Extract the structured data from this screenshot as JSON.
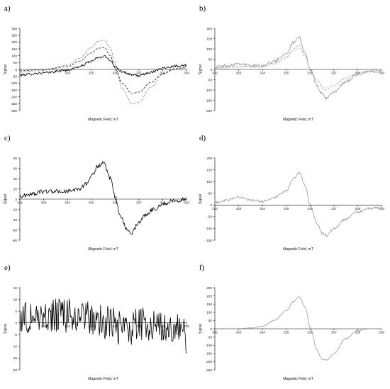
{
  "chart_data": [
    {
      "panel_label": "a)",
      "type": "line",
      "xlabel": "Magnetic Field, mT",
      "ylabel": "Signal",
      "xlim": [
        332,
        339
      ],
      "ylim": [
        -300,
        300
      ],
      "xticks": [
        332,
        333,
        334,
        335,
        336,
        337,
        338,
        339
      ],
      "xtick_labels": [
        "",
        "",
        "334",
        "335",
        "336",
        "337",
        "338",
        "339"
      ],
      "yticks": [
        300,
        250,
        200,
        150,
        100,
        50,
        0,
        -50,
        -100,
        -150,
        -200,
        -250,
        -300
      ],
      "ytick_labels": [
        "300",
        "250",
        "200",
        "150",
        "100",
        "50",
        "0",
        "-50",
        "-100",
        "-150",
        "-200",
        "-250",
        "-300"
      ],
      "series": [
        {
          "style": "solid",
          "color": "#000000",
          "noise": 0.03,
          "x": [
            332,
            333,
            334,
            334.5,
            335,
            335.3,
            335.55,
            335.8,
            336,
            336.3,
            336.7,
            337,
            337.5,
            338,
            338.5,
            339
          ],
          "y": [
            -40,
            -25,
            -5,
            20,
            60,
            85,
            95,
            70,
            20,
            -15,
            -40,
            -45,
            -20,
            10,
            25,
            30
          ]
        },
        {
          "style": "dashed",
          "color": "#333333",
          "noise": 0.0,
          "x": [
            332,
            333,
            334,
            334.5,
            335,
            335.3,
            335.55,
            335.8,
            336,
            336.3,
            336.7,
            337,
            337.5,
            338,
            338.5,
            339
          ],
          "y": [
            -10,
            0,
            20,
            60,
            120,
            155,
            160,
            100,
            10,
            -100,
            -175,
            -165,
            -95,
            -30,
            5,
            15
          ]
        },
        {
          "style": "dotted",
          "color": "#555555",
          "noise": 0.0,
          "x": [
            332,
            333,
            334,
            334.5,
            335,
            335.3,
            335.55,
            335.8,
            336,
            336.3,
            336.7,
            337,
            337.5,
            338,
            338.5,
            339
          ],
          "y": [
            -20,
            -5,
            30,
            80,
            160,
            205,
            215,
            160,
            40,
            -140,
            -250,
            -240,
            -130,
            -35,
            0,
            10
          ]
        }
      ]
    },
    {
      "panel_label": "b)",
      "type": "line",
      "xlabel": "Magnetic Field, mT",
      "ylabel": "Signal",
      "xlim": [
        332,
        339
      ],
      "ylim": [
        -200,
        200
      ],
      "xticks": [
        332,
        333,
        334,
        335,
        336,
        337,
        338,
        339
      ],
      "xtick_labels": [
        "332",
        "333",
        "334",
        "335",
        "336",
        "337",
        "338",
        "339"
      ],
      "yticks": [
        200,
        150,
        100,
        50,
        0,
        -50,
        -100,
        -150,
        -200
      ],
      "ytick_labels": [
        "200",
        "150",
        "100",
        "50",
        "0",
        "-50",
        "-100",
        "-150",
        "-200"
      ],
      "series": [
        {
          "style": "solid",
          "color": "#9a9a9a",
          "noise": 0.04,
          "x": [
            332,
            332.5,
            333,
            333.5,
            334,
            334.5,
            335,
            335.3,
            335.55,
            335.8,
            336,
            336.3,
            336.5,
            336.7,
            337,
            337.5,
            338,
            338.5,
            339
          ],
          "y": [
            10,
            18,
            30,
            18,
            20,
            40,
            80,
            130,
            155,
            80,
            0,
            -80,
            -120,
            -140,
            -110,
            -60,
            -25,
            -10,
            -5
          ]
        },
        {
          "style": "dashed",
          "color": "#aaaaaa",
          "noise": 0.0,
          "x": [
            332,
            333,
            334,
            334.5,
            335,
            335.3,
            335.55,
            335.8,
            336,
            336.3,
            336.6,
            337,
            337.5,
            338,
            338.5,
            339
          ],
          "y": [
            5,
            15,
            15,
            30,
            60,
            100,
            120,
            70,
            0,
            -60,
            -100,
            -80,
            -45,
            -20,
            -8,
            -5
          ]
        },
        {
          "style": "dotted",
          "color": "#b5b5b5",
          "noise": 0.0,
          "x": [
            332,
            333,
            334,
            334.5,
            335,
            335.3,
            335.55,
            335.8,
            336,
            336.3,
            336.6,
            337,
            337.5,
            338,
            338.5,
            339
          ],
          "y": [
            0,
            10,
            10,
            25,
            55,
            90,
            105,
            60,
            0,
            -50,
            -90,
            -70,
            -40,
            -15,
            -5,
            0
          ]
        }
      ]
    },
    {
      "panel_label": "c)",
      "type": "line",
      "xlabel": "Magnetic Field, mT",
      "ylabel": "Signal",
      "xlim": [
        332,
        339
      ],
      "ylim": [
        -80,
        80
      ],
      "xticks": [
        332,
        333,
        334,
        335,
        336,
        337,
        338,
        339
      ],
      "xtick_labels": [
        "332",
        "333",
        "334",
        "335",
        "336",
        "337",
        "338",
        "339"
      ],
      "yticks": [
        80,
        60,
        40,
        20,
        0,
        -20,
        -40,
        -60,
        -80
      ],
      "ytick_labels": [
        "80",
        "60",
        "40",
        "20",
        "0",
        "-20",
        "-40",
        "-60",
        "-80"
      ],
      "series": [
        {
          "style": "solid",
          "color": "#000000",
          "noise": 0.05,
          "x": [
            332,
            332.5,
            333,
            333.5,
            334,
            334.5,
            334.8,
            335,
            335.3,
            335.5,
            335.8,
            336,
            336.2,
            336.5,
            336.7,
            337,
            337.3,
            337.6,
            338,
            338.5,
            339
          ],
          "y": [
            5,
            10,
            15,
            15,
            15,
            20,
            30,
            45,
            65,
            70,
            40,
            5,
            -30,
            -60,
            -65,
            -45,
            -30,
            -20,
            -10,
            -3,
            0
          ]
        }
      ]
    },
    {
      "panel_label": "d)",
      "type": "line",
      "xlabel": "Magnetic Field, mT",
      "ylabel": "Signal",
      "xlim": [
        332,
        339
      ],
      "ylim": [
        -150,
        200
      ],
      "xticks": [
        332,
        333,
        334,
        335,
        336,
        337,
        338,
        339
      ],
      "xtick_labels": [
        "332",
        "333",
        "334",
        "335",
        "336",
        "337",
        "338",
        "339"
      ],
      "yticks": [
        200,
        150,
        100,
        50,
        0,
        -50,
        -100,
        -150
      ],
      "ytick_labels": [
        "200",
        "150",
        "100",
        "50",
        "0",
        "-50",
        "-100",
        "-150"
      ],
      "series": [
        {
          "style": "solid",
          "color": "#9a9a9a",
          "noise": 0.03,
          "x": [
            332,
            332.5,
            333,
            333.5,
            334,
            334.5,
            335,
            335.3,
            335.55,
            335.8,
            336,
            336.3,
            336.5,
            336.7,
            337,
            337.5,
            338,
            338.5,
            339
          ],
          "y": [
            10,
            20,
            35,
            20,
            15,
            30,
            60,
            110,
            140,
            80,
            0,
            -80,
            -120,
            -130,
            -100,
            -60,
            -30,
            -15,
            -10
          ]
        }
      ]
    },
    {
      "panel_label": "e)",
      "type": "line",
      "xlabel": "Magnetic Field, mT",
      "ylabel": "Signal",
      "xlim": [
        332,
        339
      ],
      "ylim": [
        -20,
        15
      ],
      "xticks": [
        332,
        333,
        334,
        335,
        336,
        337,
        338,
        339
      ],
      "xtick_labels": [
        "",
        "333",
        "334",
        "335",
        "336",
        "337",
        "338",
        "339"
      ],
      "yticks": [
        15,
        10,
        5,
        0,
        -5,
        -10,
        -15,
        -20
      ],
      "ytick_labels": [
        "15",
        "10",
        "5",
        "0",
        "-5",
        "-10",
        "-15",
        "-20"
      ],
      "series": [
        {
          "style": "solid",
          "color": "#000000",
          "noise": 0.42,
          "x": [
            332,
            333,
            334,
            335,
            335.8,
            336.2,
            336.6,
            337,
            337.5,
            338,
            338.5,
            339
          ],
          "y": [
            2,
            3,
            3,
            2,
            0,
            -2,
            -3,
            -1,
            0,
            -1,
            -3,
            -6
          ]
        }
      ]
    },
    {
      "panel_label": "f)",
      "type": "line",
      "xlabel": "Magnetic Field, mT",
      "ylabel": "Signal",
      "xlim": [
        332,
        339
      ],
      "ylim": [
        -250,
        250
      ],
      "xticks": [
        332,
        333,
        334,
        335,
        336,
        337,
        338,
        339
      ],
      "xtick_labels": [
        "332",
        "333",
        "334",
        "335",
        "336",
        "337",
        "338",
        "339"
      ],
      "yticks": [
        250,
        200,
        150,
        100,
        50,
        0,
        -50,
        -100,
        -150,
        -200,
        -250
      ],
      "ytick_labels": [
        "250",
        "200",
        "150",
        "100",
        "50",
        "0",
        "-50",
        "-100",
        "-150",
        "-200",
        "-250"
      ],
      "series": [
        {
          "style": "solid",
          "color": "#9a9a9a",
          "noise": 0.01,
          "x": [
            332,
            333,
            333.5,
            334,
            334.5,
            335,
            335.3,
            335.55,
            335.8,
            336,
            336.3,
            336.5,
            336.7,
            337,
            337.5,
            338,
            338.5,
            339
          ],
          "y": [
            0,
            0,
            5,
            15,
            50,
            110,
            165,
            195,
            130,
            10,
            -130,
            -185,
            -190,
            -150,
            -60,
            -10,
            0,
            0
          ]
        }
      ]
    }
  ]
}
